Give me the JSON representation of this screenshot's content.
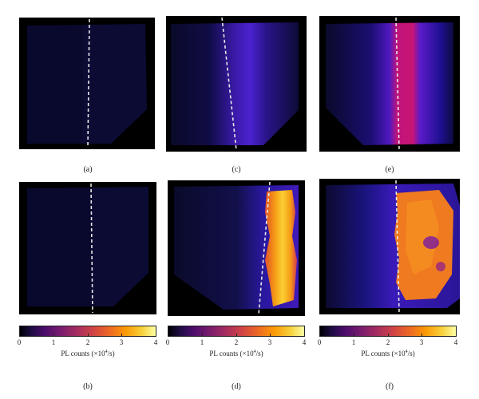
{
  "panels": [
    {
      "id": "a",
      "label": "(a)"
    },
    {
      "id": "c",
      "label": "(c)"
    },
    {
      "id": "e",
      "label": "(e)"
    },
    {
      "id": "b",
      "label": "(b)"
    },
    {
      "id": "d",
      "label": "(d)"
    },
    {
      "id": "f",
      "label": "(f)"
    }
  ],
  "colorbar": {
    "ticks": [
      "0",
      "1",
      "2",
      "3",
      "4"
    ],
    "title_prefix": "PL counts (×10",
    "title_exp": "4",
    "title_suffix": "/s)",
    "colormap": "inferno",
    "range": [
      0,
      4
    ]
  },
  "colors": {
    "background": "#ffffff",
    "map_base": "#0a0a30",
    "dashed_line": "#e8e8e8"
  }
}
